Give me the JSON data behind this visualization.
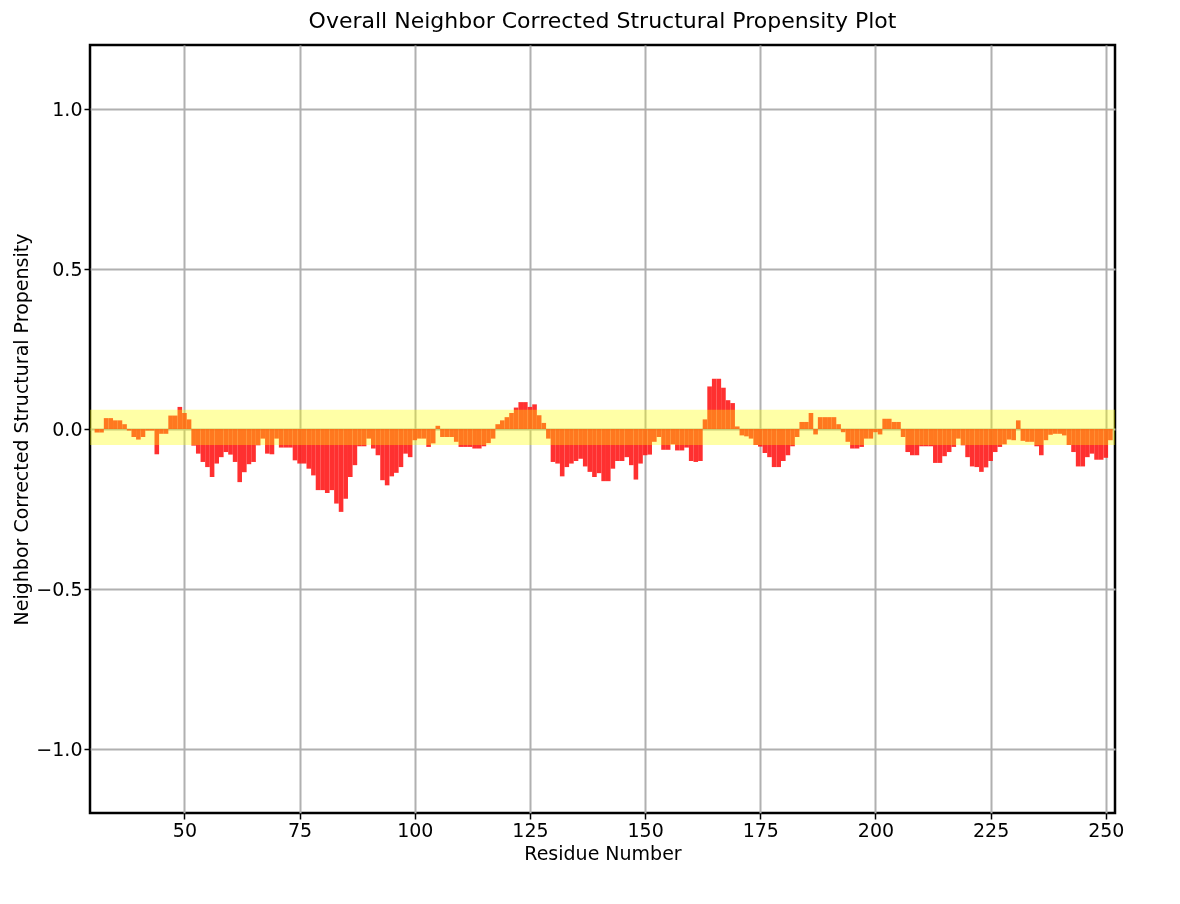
{
  "chart_data": {
    "type": "bar",
    "title": "Overall Neighbor Corrected Structural Propensity Plot",
    "xlabel": "Residue Number",
    "ylabel": "Neighbor Corrected Structural Propensity",
    "x": [
      31,
      32,
      33,
      34,
      35,
      36,
      37,
      38,
      39,
      40,
      41,
      42,
      43,
      44,
      45,
      46,
      47,
      48,
      49,
      50,
      51,
      52,
      53,
      54,
      55,
      56,
      57,
      58,
      59,
      60,
      61,
      62,
      63,
      64,
      65,
      66,
      67,
      68,
      69,
      70,
      71,
      72,
      73,
      74,
      75,
      76,
      77,
      78,
      79,
      80,
      81,
      82,
      83,
      84,
      85,
      86,
      87,
      88,
      89,
      90,
      91,
      92,
      93,
      94,
      95,
      96,
      97,
      98,
      99,
      100,
      101,
      102,
      103,
      104,
      105,
      106,
      107,
      108,
      109,
      110,
      111,
      112,
      113,
      114,
      115,
      116,
      117,
      118,
      119,
      120,
      121,
      122,
      123,
      124,
      125,
      126,
      127,
      128,
      129,
      130,
      131,
      132,
      133,
      134,
      135,
      136,
      137,
      138,
      139,
      140,
      141,
      142,
      143,
      144,
      145,
      146,
      147,
      148,
      149,
      150,
      151,
      152,
      153,
      154,
      155,
      156,
      157,
      158,
      159,
      160,
      161,
      162,
      163,
      164,
      165,
      166,
      167,
      168,
      169,
      170,
      171,
      172,
      173,
      174,
      175,
      176,
      177,
      178,
      179,
      180,
      181,
      182,
      183,
      184,
      185,
      186,
      187,
      188,
      189,
      190,
      191,
      192,
      193,
      194,
      195,
      196,
      197,
      198,
      199,
      200,
      201,
      202,
      203,
      204,
      205,
      206,
      207,
      208,
      209,
      210,
      211,
      212,
      213,
      214,
      215,
      216,
      217,
      218,
      219,
      220,
      221,
      222,
      223,
      224,
      225,
      226,
      227,
      228,
      229,
      230,
      231,
      232,
      233,
      234,
      235,
      236,
      237,
      238,
      239,
      240,
      241,
      242,
      243,
      244,
      245,
      246,
      247,
      248,
      249,
      250,
      251
    ],
    "series": [
      {
        "color": "#ff1a1a",
        "values": [
          -0.011,
          -0.011,
          0.034,
          0.034,
          0.027,
          0.027,
          0.015,
          -0.005,
          -0.025,
          -0.033,
          -0.025,
          -0.005,
          -0.005,
          -0.079,
          -0.015,
          -0.015,
          0.042,
          0.042,
          0.069,
          0.05,
          0.03,
          -0.052,
          -0.077,
          -0.103,
          -0.119,
          -0.15,
          -0.108,
          -0.088,
          -0.072,
          -0.08,
          -0.103,
          -0.166,
          -0.135,
          -0.11,
          -0.103,
          -0.051,
          -0.03,
          -0.077,
          -0.079,
          -0.03,
          -0.058,
          -0.058,
          -0.058,
          -0.098,
          -0.108,
          -0.108,
          -0.124,
          -0.145,
          -0.191,
          -0.191,
          -0.2,
          -0.191,
          -0.233,
          -0.259,
          -0.218,
          -0.15,
          -0.113,
          -0.054,
          -0.054,
          -0.03,
          -0.061,
          -0.082,
          -0.16,
          -0.176,
          -0.148,
          -0.137,
          -0.119,
          -0.077,
          -0.088,
          -0.035,
          -0.03,
          -0.03,
          -0.056,
          -0.045,
          0.01,
          -0.025,
          -0.025,
          -0.025,
          -0.04,
          -0.056,
          -0.056,
          -0.056,
          -0.061,
          -0.061,
          -0.054,
          -0.044,
          -0.03,
          0.015,
          0.027,
          0.037,
          0.05,
          0.067,
          0.084,
          0.084,
          0.069,
          0.077,
          0.043,
          0.019,
          -0.03,
          -0.103,
          -0.108,
          -0.148,
          -0.119,
          -0.108,
          -0.1,
          -0.093,
          -0.117,
          -0.134,
          -0.15,
          -0.138,
          -0.163,
          -0.163,
          -0.124,
          -0.1,
          -0.1,
          -0.088,
          -0.113,
          -0.158,
          -0.108,
          -0.082,
          -0.08,
          -0.04,
          -0.025,
          -0.065,
          -0.065,
          -0.048,
          -0.067,
          -0.067,
          -0.058,
          -0.1,
          -0.103,
          -0.1,
          0.03,
          0.133,
          0.157,
          0.157,
          0.129,
          0.09,
          0.081,
          0.008,
          -0.02,
          -0.023,
          -0.03,
          -0.05,
          -0.055,
          -0.075,
          -0.088,
          -0.119,
          -0.119,
          -0.1,
          -0.082,
          -0.054,
          -0.025,
          0.022,
          0.022,
          0.05,
          -0.017,
          0.037,
          0.037,
          0.037,
          0.037,
          0.015,
          -0.01,
          -0.04,
          -0.061,
          -0.061,
          -0.056,
          -0.03,
          -0.03,
          -0.01,
          -0.017,
          0.032,
          0.032,
          0.022,
          0.022,
          -0.025,
          -0.072,
          -0.082,
          -0.082,
          -0.054,
          -0.054,
          -0.054,
          -0.106,
          -0.106,
          -0.085,
          -0.072,
          -0.056,
          -0.03,
          -0.051,
          -0.088,
          -0.117,
          -0.119,
          -0.134,
          -0.12,
          -0.1,
          -0.072,
          -0.056,
          -0.048,
          -0.033,
          -0.035,
          0.027,
          -0.037,
          -0.04,
          -0.04,
          -0.054,
          -0.082,
          -0.035,
          -0.018,
          -0.015,
          -0.015,
          -0.02,
          -0.05,
          -0.072,
          -0.117,
          -0.117,
          -0.088,
          -0.077,
          -0.096,
          -0.096,
          -0.09,
          -0.035
        ]
      }
    ],
    "xlim": [
      29.5,
      252
    ],
    "ylim": [
      -1.2,
      1.2
    ],
    "xticks": [
      50,
      75,
      100,
      125,
      150,
      175,
      200,
      225,
      250
    ],
    "yticks": [
      {
        "value": -1,
        "label": "−1.0"
      },
      {
        "value": -0.5,
        "label": "−0.5"
      },
      {
        "value": 0,
        "label": "0.0"
      },
      {
        "value": 0.5,
        "label": "0.5"
      },
      {
        "value": 1,
        "label": "1.0"
      }
    ],
    "bands": [
      {
        "axis": "y",
        "from": -0.05,
        "to": 0.06,
        "color": "#ffff00"
      }
    ],
    "grid": true
  }
}
